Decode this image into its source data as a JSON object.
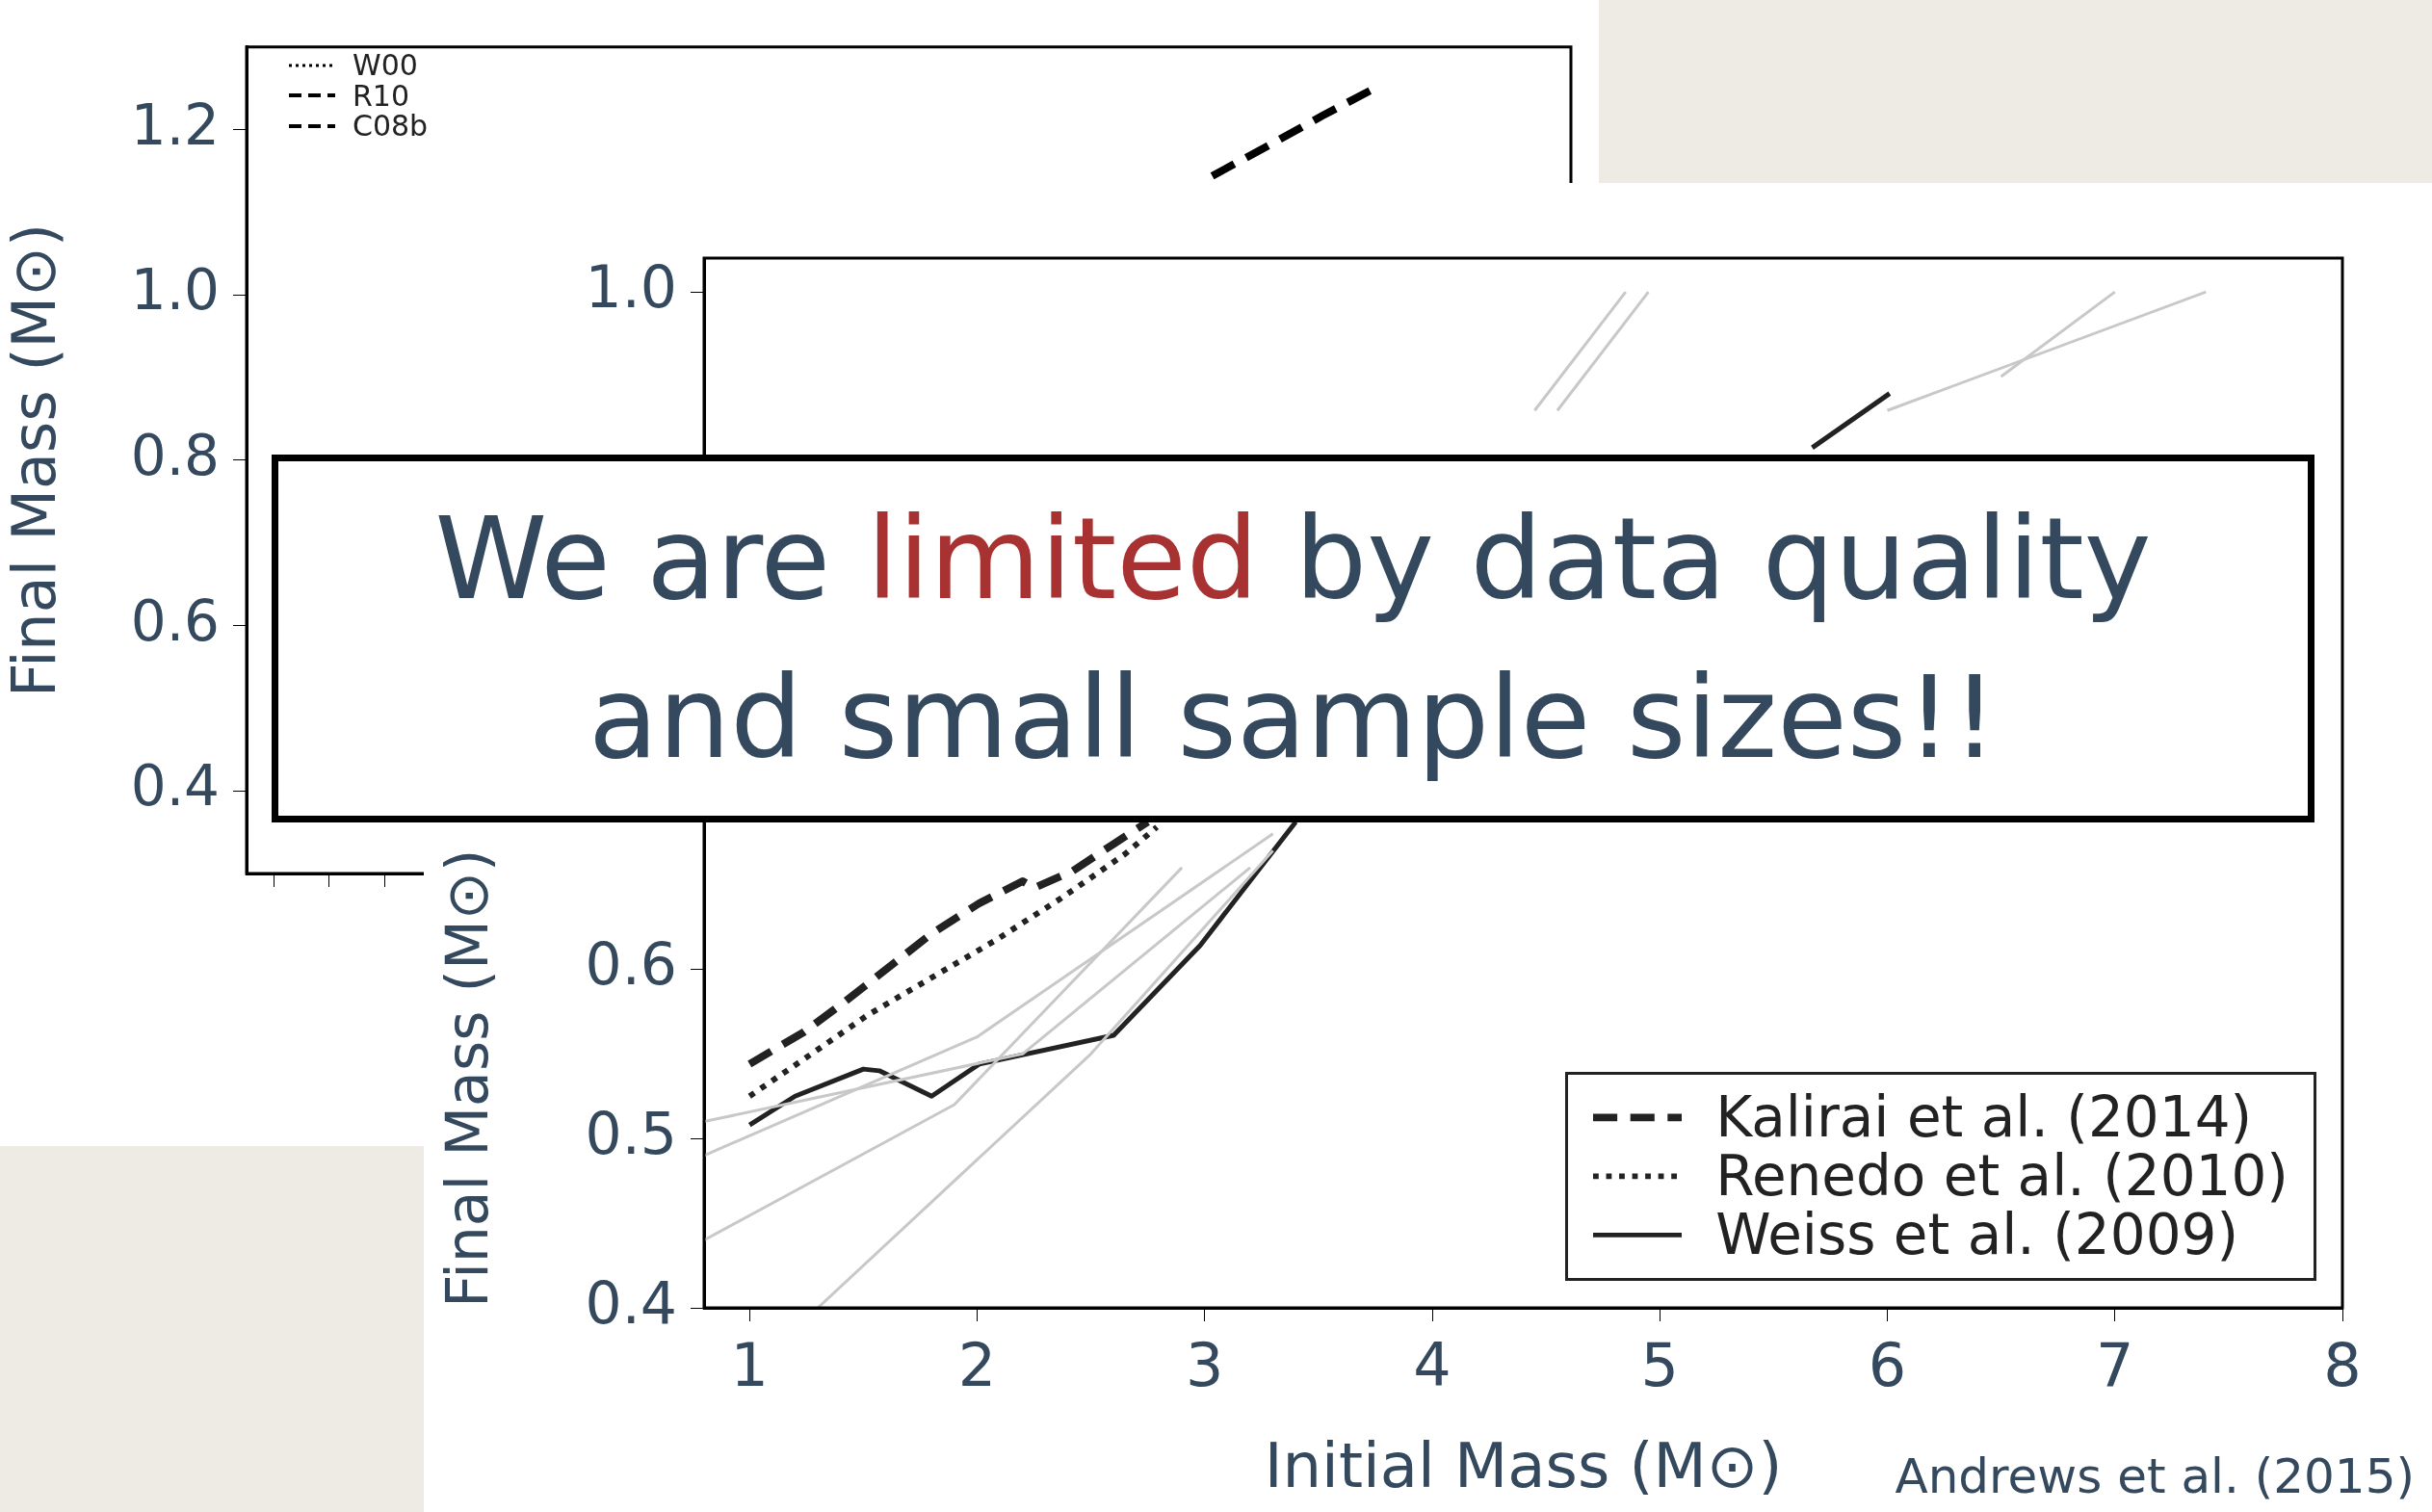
{
  "chart_data": [
    {
      "type": "line",
      "ylabel": "Final Mass (M⊙)",
      "categories": [
        null,
        null,
        null,
        null,
        null,
        null,
        null,
        null,
        null,
        null,
        null,
        null,
        null,
        null,
        null,
        null,
        null,
        null,
        null,
        null,
        null,
        null,
        null,
        null
      ],
      "ylim": [
        0.3,
        1.3
      ],
      "yticks": [
        {
          "value": 0.4,
          "label": "0.4"
        },
        {
          "value": 0.6,
          "label": "0.6"
        },
        {
          "value": 0.8,
          "label": "0.8"
        },
        {
          "value": 1,
          "label": "1.0"
        },
        {
          "value": 1.2,
          "label": "1.2"
        }
      ],
      "tick_labels": "y",
      "legend": "top left",
      "grid": false,
      "series": [
        {
          "name": "W00",
          "color": "#000000",
          "line_style": "dotted",
          "values": [
            null,
            null,
            null,
            null,
            null,
            null,
            null,
            null,
            null,
            null,
            null,
            null,
            null,
            null,
            null,
            null,
            null,
            null,
            null,
            null,
            null,
            null,
            null,
            null
          ]
        },
        {
          "name": "R10",
          "color": "#000000",
          "line_style": "dashed",
          "values": [
            null,
            null,
            null,
            null,
            null,
            null,
            null,
            null,
            null,
            null,
            null,
            null,
            null,
            null,
            null,
            null,
            null,
            null,
            null,
            null,
            null,
            null,
            null,
            null
          ]
        },
        {
          "name": "C08b",
          "color": "#000000",
          "line_style": "dashed",
          "values": [
            null,
            null,
            null,
            null,
            null,
            null,
            null,
            null,
            null,
            null,
            null,
            null,
            null,
            null,
            null,
            null,
            null,
            1.144,
            1.18,
            1.217,
            1.252,
            null,
            null,
            null
          ]
        }
      ]
    },
    {
      "type": "line",
      "xlabel": "Initial Mass (M⊙)",
      "ylabel": "Final Mass (M⊙)",
      "annotations": [
        "We are limited by data quality and small sample sizes!!",
        "Andrews et al. (2015)"
      ],
      "xlim": [
        0.8,
        8
      ],
      "xticks": [
        1,
        2,
        3,
        4,
        5,
        6,
        7,
        8
      ],
      "ylim": [
        0.4,
        1.02
      ],
      "yticks": [
        {
          "value": 0.4,
          "label": "0.4"
        },
        {
          "value": 0.5,
          "label": "0.5"
        },
        {
          "value": 0.6,
          "label": "0.6"
        },
        {
          "value": 0.7,
          "label": null
        },
        {
          "value": 0.8,
          "label": null
        },
        {
          "value": 0.9,
          "label": null
        },
        {
          "value": 1,
          "label": "1.0"
        }
      ],
      "legend": "bottom right",
      "grid": false,
      "series": [
        {
          "color": "#c8c8c8",
          "line_style": "solid",
          "x": [
            0.8,
            2,
            3.3,
            5.5,
            6.5,
            7
          ],
          "values": [
            0.49,
            0.56,
            0.68,
            null,
            0.95,
            1
          ]
        },
        {
          "color": "#c8c8c8",
          "line_style": "solid",
          "x": [
            0.8,
            1.9,
            2.9,
            4.6,
            6,
            7.4
          ],
          "values": [
            0.44,
            0.52,
            0.66,
            null,
            0.93,
            1
          ]
        },
        {
          "color": "#c8c8c8",
          "line_style": "solid",
          "x": [
            0.8,
            2.2,
            3.2,
            4.3,
            4.55,
            4.95
          ],
          "values": [
            0.51,
            0.55,
            0.66,
            null,
            0.93,
            1
          ]
        },
        {
          "color": "#c8c8c8",
          "line_style": "solid",
          "x": [
            1.3,
            2.5,
            3.3,
            4.2,
            4.45,
            4.85
          ],
          "values": [
            0.4,
            0.55,
            0.67,
            null,
            0.93,
            1
          ]
        },
        {
          "name": "Kalirai et al. (2014)",
          "color": "#222222",
          "line_style": "dashed",
          "x": [
            1,
            1.24,
            1.42,
            1.61,
            1.8,
            2.01,
            2.2,
            2.25,
            2.42,
            2.6,
            2.75
          ],
          "values": [
            0.544,
            0.563,
            0.581,
            0.601,
            0.621,
            0.639,
            0.652,
            0.648,
            0.658,
            0.674,
            0.687
          ]
        },
        {
          "name": "Renedo et al. (2010)",
          "color": "#222222",
          "line_style": "dotted",
          "x": [
            1,
            1.24,
            1.52,
            1.8,
            2.08,
            2.37,
            2.65,
            2.79
          ],
          "values": [
            0.525,
            0.547,
            0.573,
            0.595,
            0.617,
            0.642,
            0.668,
            0.684
          ]
        },
        {
          "name": "Weiss et al. (2009)",
          "color": "#222222",
          "line_style": "solid",
          "x": [
            1,
            1.2,
            1.5,
            1.57,
            1.8,
            2.01,
            2.6,
            2.98,
            3.4,
            4.5,
            5.67,
            6.01
          ],
          "values": [
            0.508,
            0.525,
            0.541,
            0.54,
            0.525,
            0.544,
            0.561,
            0.614,
            0.687,
            null,
            0.908,
            0.94
          ]
        }
      ]
    }
  ]
}
